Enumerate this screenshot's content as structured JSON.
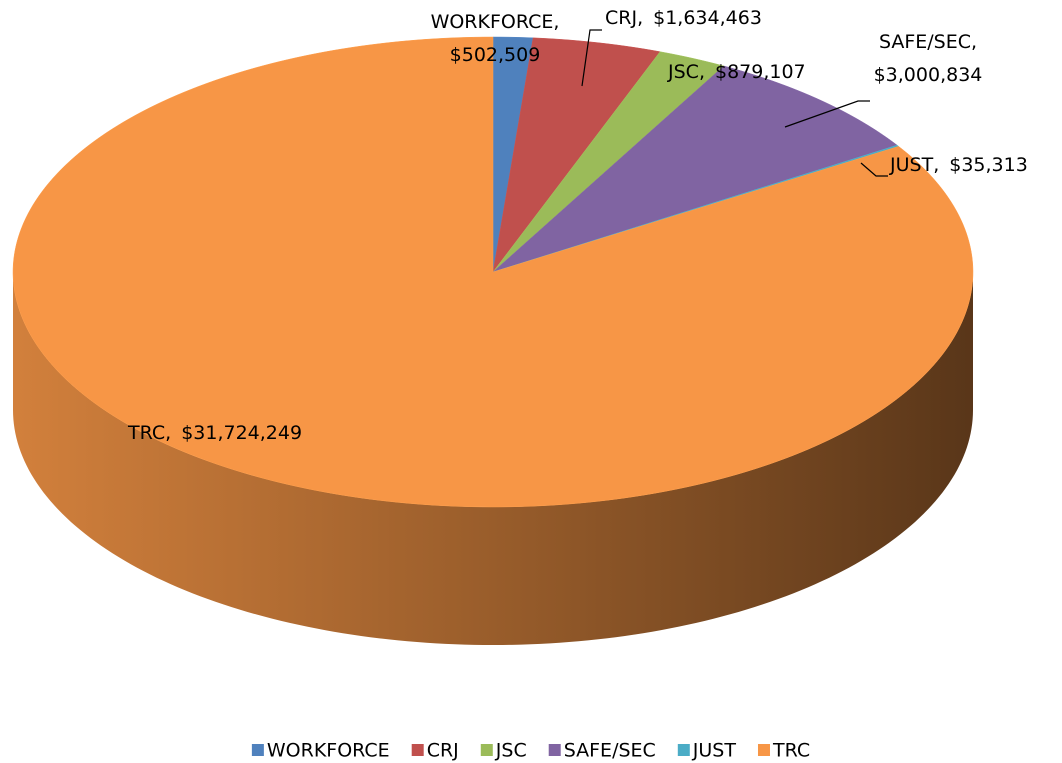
{
  "chart_data": {
    "type": "pie",
    "three_d": true,
    "categories": [
      "WORKFORCE",
      "CRJ",
      "JSC",
      "SAFE/SEC",
      "JUST",
      "TRC"
    ],
    "values": [
      502509,
      1634463,
      879107,
      3000834,
      35313,
      31724249
    ],
    "value_labels": [
      "$502,509",
      "$1,634,463",
      "$879,107",
      "$3,000,834",
      "$35,313",
      "$31,724,249"
    ],
    "label_separator": ",",
    "colors": [
      "#4f81bd",
      "#c0504d",
      "#9bbb59",
      "#8064a2",
      "#4bacc6",
      "#f79646"
    ],
    "legend": "bottom"
  }
}
